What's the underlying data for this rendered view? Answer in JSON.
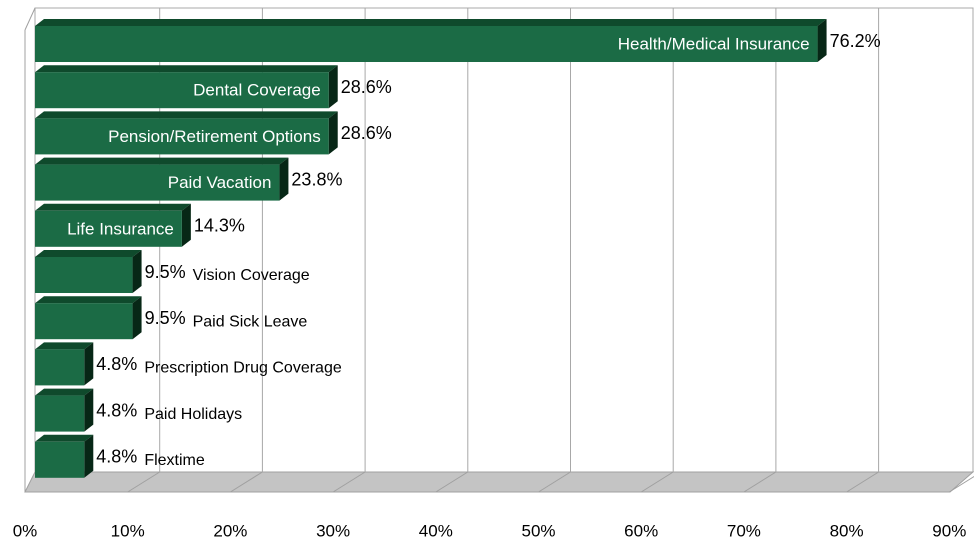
{
  "chart_data": {
    "type": "bar",
    "orientation": "horizontal",
    "color": "#1b6b45",
    "categories": [
      "Health/Medical Insurance",
      "Dental Coverage",
      "Pension/Retirement Options",
      "Paid Vacation",
      "Life Insurance",
      "Vision Coverage",
      "Paid Sick Leave",
      "Prescription Drug Coverage",
      "Paid Holidays",
      "Flextime"
    ],
    "values": [
      76.2,
      28.6,
      28.6,
      23.8,
      14.3,
      9.5,
      9.5,
      4.8,
      4.8,
      4.8
    ],
    "value_labels": [
      "76.2%",
      "28.6%",
      "28.6%",
      "23.8%",
      "14.3%",
      "9.5%",
      "9.5%",
      "4.8%",
      "4.8%",
      "4.8%"
    ],
    "xlim": [
      0,
      90
    ],
    "xticks": [
      {
        "value": 0,
        "label": "0%"
      },
      {
        "value": 10,
        "label": "10%"
      },
      {
        "value": 20,
        "label": "20%"
      },
      {
        "value": 30,
        "label": "30%"
      },
      {
        "value": 40,
        "label": "40%"
      },
      {
        "value": 50,
        "label": "50%"
      },
      {
        "value": 60,
        "label": "60%"
      },
      {
        "value": 70,
        "label": "70%"
      },
      {
        "value": 80,
        "label": "80%"
      },
      {
        "value": 90,
        "label": "90%"
      }
    ],
    "grid": true
  }
}
